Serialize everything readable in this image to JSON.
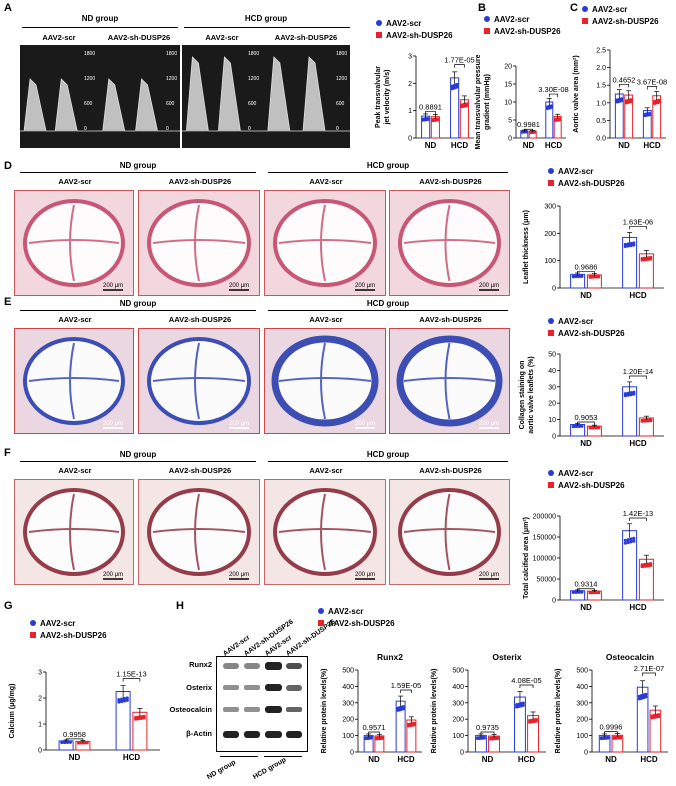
{
  "panels": {
    "A": "A",
    "B": "B",
    "C": "C",
    "D": "D",
    "E": "E",
    "F": "F",
    "G": "G",
    "H": "H"
  },
  "groups": {
    "nd": "ND group",
    "hcd": "HCD group"
  },
  "conditions": {
    "scr": "AAV2-scr",
    "sh": "AAV2-sh-DUSP26"
  },
  "legend": {
    "scr": "AAV2-scr",
    "sh": "AAV2-sh-DUSP26"
  },
  "scale_bar": "200 μm",
  "echo_ticks": [
    "1800",
    "1200",
    "600",
    "0"
  ],
  "western": {
    "rows": [
      "Runx2",
      "Osterix",
      "Osteocalcin",
      "β-Actin"
    ],
    "cols": [
      "AAV2-scr",
      "AAV2-sh-DUSP26",
      "AAV2-scr",
      "AAV2-sh-DUSP26"
    ],
    "groups": [
      "ND group",
      "HCD group"
    ]
  },
  "chart_data": [
    {
      "id": "A",
      "type": "bar",
      "ylabel": "Peak transvalvular\njet velocity (m/s)",
      "ylim": [
        0,
        3
      ],
      "yticks": [
        0,
        1,
        2,
        3
      ],
      "categories": [
        "ND",
        "HCD"
      ],
      "series": [
        {
          "name": "AAV2-scr",
          "values": [
            0.8,
            2.2
          ]
        },
        {
          "name": "AAV2-sh-DUSP26",
          "values": [
            0.78,
            1.4
          ]
        }
      ],
      "pvalues": [
        "0.8891",
        "1.77E-05"
      ]
    },
    {
      "id": "B",
      "type": "bar",
      "ylabel": "Mean transvalvular pressure\ngradient (mmHg)",
      "ylim": [
        0,
        20
      ],
      "yticks": [
        0,
        5,
        10,
        15,
        20
      ],
      "categories": [
        "ND",
        "HCD"
      ],
      "series": [
        {
          "name": "AAV2-scr",
          "values": [
            2,
            10
          ]
        },
        {
          "name": "AAV2-sh-DUSP26",
          "values": [
            1.9,
            6
          ]
        }
      ],
      "pvalues": [
        "0.9981",
        "3.30E-08"
      ]
    },
    {
      "id": "C",
      "type": "bar",
      "ylabel": "Aortic valve area (mm²)",
      "ylim": [
        0,
        2.5
      ],
      "yticks": [
        "0.0",
        "0.5",
        "1.0",
        "1.5",
        "2.0",
        "2.5"
      ],
      "categories": [
        "ND",
        "HCD"
      ],
      "series": [
        {
          "name": "AAV2-scr",
          "values": [
            1.25,
            0.78
          ]
        },
        {
          "name": "AAV2-sh-DUSP26",
          "values": [
            1.22,
            1.2
          ]
        }
      ],
      "pvalues": [
        "0.4652",
        "3.67E-08"
      ]
    },
    {
      "id": "D",
      "type": "bar",
      "ylabel": "Leaflet thickness (μm)",
      "ylim": [
        0,
        300
      ],
      "yticks": [
        0,
        100,
        200,
        300
      ],
      "categories": [
        "ND",
        "HCD"
      ],
      "series": [
        {
          "name": "AAV2-scr",
          "values": [
            50,
            185
          ]
        },
        {
          "name": "AAV2-sh-DUSP26",
          "values": [
            48,
            125
          ]
        }
      ],
      "pvalues": [
        "0.9686",
        "1.63E-06"
      ]
    },
    {
      "id": "E",
      "type": "bar",
      "ylabel": "Collagen staining on\naortic valve leaflets (%)",
      "ylim": [
        0,
        50
      ],
      "yticks": [
        0,
        10,
        20,
        30,
        40,
        50
      ],
      "categories": [
        "ND",
        "HCD"
      ],
      "series": [
        {
          "name": "AAV2-scr",
          "values": [
            7,
            30
          ]
        },
        {
          "name": "AAV2-sh-DUSP26",
          "values": [
            6,
            11
          ]
        }
      ],
      "pvalues": [
        "0.9053",
        "1.20E-14"
      ]
    },
    {
      "id": "F",
      "type": "bar",
      "ylabel": "Total calcified area (μm²)",
      "ylim": [
        0,
        200000
      ],
      "yticks": [
        "0",
        "50000",
        "100000",
        "150000",
        "200000"
      ],
      "categories": [
        "ND",
        "HCD"
      ],
      "series": [
        {
          "name": "AAV2-scr",
          "values": [
            22000,
            165000
          ]
        },
        {
          "name": "AAV2-sh-DUSP26",
          "values": [
            21000,
            97000
          ]
        }
      ],
      "pvalues": [
        "0.9314",
        "1.42E-13"
      ]
    },
    {
      "id": "G",
      "type": "bar",
      "ylabel": "Calcium (μg/mg)",
      "ylim": [
        0,
        3
      ],
      "yticks": [
        0,
        1,
        2,
        3
      ],
      "categories": [
        "ND",
        "HCD"
      ],
      "series": [
        {
          "name": "AAV2-scr",
          "values": [
            0.35,
            2.25
          ]
        },
        {
          "name": "AAV2-sh-DUSP26",
          "values": [
            0.33,
            1.45
          ]
        }
      ],
      "pvalues": [
        "0.9958",
        "1.15E-13"
      ]
    },
    {
      "id": "H1",
      "type": "bar",
      "title": "Runx2",
      "ylabel": "Relative protein levels(%)",
      "ylim": [
        0,
        500
      ],
      "yticks": [
        0,
        100,
        200,
        300,
        400,
        500
      ],
      "categories": [
        "ND",
        "HCD"
      ],
      "series": [
        {
          "name": "AAV2-scr",
          "values": [
            100,
            310
          ]
        },
        {
          "name": "AAV2-sh-DUSP26",
          "values": [
            98,
            195
          ]
        }
      ],
      "pvalues": [
        "0.9571",
        "1.59E-05"
      ]
    },
    {
      "id": "H2",
      "type": "bar",
      "title": "Osterix",
      "ylabel": "Relative protein levels(%)",
      "ylim": [
        0,
        500
      ],
      "yticks": [
        0,
        100,
        200,
        300,
        400,
        500
      ],
      "categories": [
        "ND",
        "HCD"
      ],
      "series": [
        {
          "name": "AAV2-scr",
          "values": [
            100,
            335
          ]
        },
        {
          "name": "AAV2-sh-DUSP26",
          "values": [
            97,
            222
          ]
        }
      ],
      "pvalues": [
        "0.9735",
        "4.08E-05"
      ]
    },
    {
      "id": "H3",
      "type": "bar",
      "title": "Osteocalcin",
      "ylabel": "Relative protein levels(%)",
      "ylim": [
        0,
        500
      ],
      "yticks": [
        0,
        100,
        200,
        300,
        400,
        500
      ],
      "categories": [
        "ND",
        "HCD"
      ],
      "series": [
        {
          "name": "AAV2-scr",
          "values": [
            100,
            395
          ]
        },
        {
          "name": "AAV2-sh-DUSP26",
          "values": [
            102,
            255
          ]
        }
      ],
      "pvalues": [
        "0.9996",
        "2.71E-07"
      ]
    }
  ]
}
